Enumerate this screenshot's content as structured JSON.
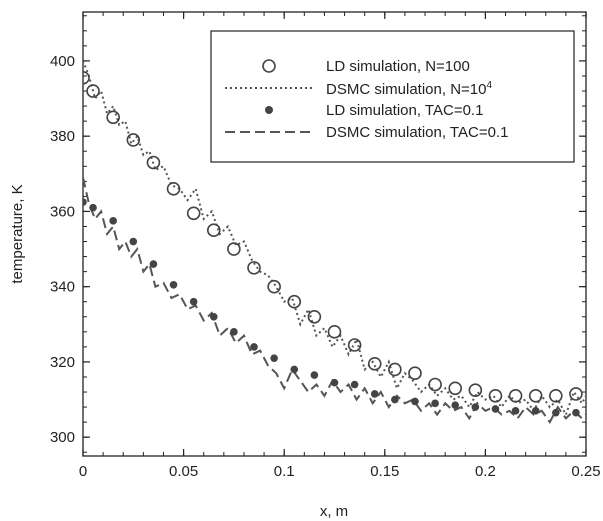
{
  "chart_data": {
    "type": "scatter",
    "title": "",
    "xlabel": "x, m",
    "ylabel": "temperature, K",
    "xlim": [
      0,
      0.25
    ],
    "ylim": [
      295,
      413
    ],
    "x_ticks": [
      0,
      0.05,
      0.1,
      0.15,
      0.2,
      0.25
    ],
    "x_tick_labels": [
      "0",
      "0.05",
      "0.1",
      "0.15",
      "0.2",
      "0.25"
    ],
    "y_ticks": [
      300,
      320,
      340,
      360,
      380,
      400
    ],
    "y_tick_labels": [
      "300",
      "320",
      "340",
      "360",
      "380",
      "400"
    ],
    "grid": false,
    "legend_position": "top-right",
    "series": [
      {
        "name": "LD simulation, N=100",
        "style": "open-circle",
        "color": "#444444",
        "x": [
          0,
          0.005,
          0.015,
          0.025,
          0.035,
          0.045,
          0.055,
          0.065,
          0.075,
          0.085,
          0.095,
          0.105,
          0.115,
          0.125,
          0.135,
          0.145,
          0.155,
          0.165,
          0.175,
          0.185,
          0.195,
          0.205,
          0.215,
          0.225,
          0.235,
          0.245
        ],
        "y": [
          395.5,
          392,
          385,
          379,
          373,
          366,
          359.5,
          355,
          350,
          345,
          340,
          336,
          332,
          328,
          324.5,
          319.5,
          318,
          317,
          314,
          313,
          312.5,
          311,
          311,
          311,
          311,
          311.5
        ]
      },
      {
        "name": "DSMC simulation, N=10",
        "name_superscript": "4",
        "style": "dotted-line",
        "color": "#555555",
        "x": [
          0,
          0.003,
          0.006,
          0.009,
          0.012,
          0.015,
          0.018,
          0.021,
          0.024,
          0.027,
          0.03,
          0.033,
          0.036,
          0.04,
          0.044,
          0.048,
          0.052,
          0.056,
          0.06,
          0.064,
          0.068,
          0.072,
          0.076,
          0.08,
          0.084,
          0.088,
          0.092,
          0.096,
          0.1,
          0.104,
          0.108,
          0.112,
          0.116,
          0.12,
          0.124,
          0.128,
          0.132,
          0.136,
          0.14,
          0.144,
          0.148,
          0.152,
          0.156,
          0.16,
          0.164,
          0.168,
          0.172,
          0.176,
          0.18,
          0.184,
          0.188,
          0.192,
          0.196,
          0.2,
          0.204,
          0.208,
          0.212,
          0.216,
          0.22,
          0.224,
          0.228,
          0.232,
          0.236,
          0.24,
          0.244,
          0.248,
          0.25
        ],
        "y": [
          400,
          396,
          390,
          392,
          386,
          388,
          383,
          384,
          378,
          380,
          375,
          376,
          371,
          372,
          367,
          366,
          363,
          366,
          358,
          360,
          354,
          356,
          351,
          352,
          347,
          344,
          343,
          340,
          336,
          337,
          330,
          334,
          327,
          329,
          324,
          327,
          322,
          326,
          318,
          320,
          316,
          320,
          313,
          317,
          315,
          312,
          314,
          311,
          313,
          310,
          311,
          308,
          312,
          310,
          311,
          308,
          311,
          309,
          310,
          307,
          311,
          308,
          310,
          306,
          312,
          309,
          311
        ]
      },
      {
        "name": "LD simulation, TAC=0.1",
        "style": "filled-circle",
        "color": "#444444",
        "x": [
          0,
          0.005,
          0.015,
          0.025,
          0.035,
          0.045,
          0.055,
          0.065,
          0.075,
          0.085,
          0.095,
          0.105,
          0.115,
          0.125,
          0.135,
          0.145,
          0.155,
          0.165,
          0.175,
          0.185,
          0.195,
          0.205,
          0.215,
          0.225,
          0.235,
          0.245
        ],
        "y": [
          362.5,
          361,
          357.5,
          352,
          346,
          340.5,
          336,
          332,
          328,
          324,
          321,
          318,
          316.5,
          314.5,
          314,
          311.5,
          310,
          309.5,
          309,
          308.5,
          308,
          307.5,
          307,
          307,
          306.5,
          306.5
        ]
      },
      {
        "name": "DSMC simulation, TAC=0.1",
        "style": "dashed-line",
        "color": "#555555",
        "x": [
          0,
          0.003,
          0.006,
          0.009,
          0.012,
          0.015,
          0.018,
          0.021,
          0.024,
          0.027,
          0.03,
          0.033,
          0.036,
          0.04,
          0.044,
          0.048,
          0.052,
          0.056,
          0.06,
          0.064,
          0.068,
          0.072,
          0.076,
          0.08,
          0.084,
          0.088,
          0.092,
          0.096,
          0.1,
          0.104,
          0.108,
          0.112,
          0.116,
          0.12,
          0.124,
          0.128,
          0.132,
          0.136,
          0.14,
          0.144,
          0.148,
          0.152,
          0.156,
          0.16,
          0.164,
          0.168,
          0.172,
          0.176,
          0.18,
          0.184,
          0.188,
          0.192,
          0.196,
          0.2,
          0.204,
          0.208,
          0.212,
          0.216,
          0.22,
          0.224,
          0.228,
          0.232,
          0.236,
          0.24,
          0.244,
          0.248,
          0.25
        ],
        "y": [
          369,
          362,
          358,
          360,
          354,
          356,
          350,
          352,
          348,
          350,
          344,
          346,
          340,
          341,
          337,
          338,
          334,
          335,
          331,
          333,
          327,
          329,
          325,
          327,
          322,
          323,
          319,
          317,
          313,
          318,
          315,
          312,
          314,
          311,
          315,
          312,
          314,
          310,
          313,
          309,
          312,
          308,
          311,
          309,
          310,
          307,
          309,
          306,
          309,
          307,
          308,
          305,
          309,
          307,
          308,
          306,
          307,
          305,
          308,
          306,
          307,
          304,
          308,
          305,
          307,
          305,
          306
        ]
      }
    ]
  }
}
